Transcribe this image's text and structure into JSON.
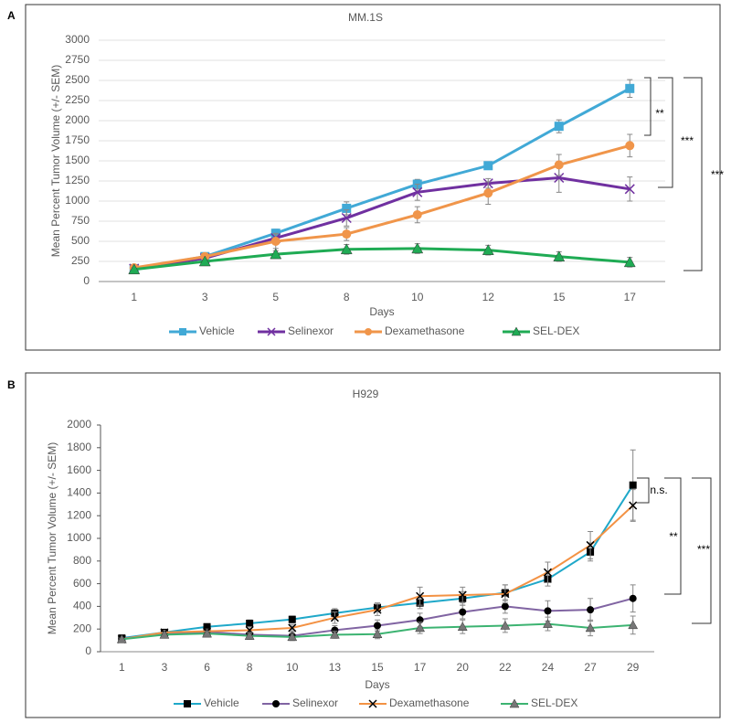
{
  "chart_data": [
    {
      "type": "line",
      "panel": "A",
      "title": "MM.1S",
      "x_label": "Days",
      "y_label": "Mean Percent Tumor Volume (+/- SEM)",
      "categories": [
        "1",
        "3",
        "5",
        "8",
        "10",
        "12",
        "15",
        "17"
      ],
      "ylim": [
        0,
        3000
      ],
      "yticks": [
        0,
        250,
        500,
        750,
        1000,
        1250,
        1500,
        1750,
        2000,
        2250,
        2500,
        2750,
        3000
      ],
      "grid": true,
      "series": [
        {
          "name": "Vehicle",
          "color": "#41a9d6",
          "marker": "square",
          "values": [
            160,
            310,
            600,
            910,
            1210,
            1440,
            1930,
            2400
          ],
          "errors": [
            20,
            30,
            50,
            80,
            60,
            40,
            80,
            110
          ]
        },
        {
          "name": "Selinexor",
          "color": "#7030a0",
          "marker": "x",
          "values": [
            160,
            290,
            540,
            790,
            1110,
            1220,
            1290,
            1150
          ],
          "errors": [
            20,
            30,
            60,
            100,
            100,
            60,
            180,
            150
          ]
        },
        {
          "name": "Dexamethasone",
          "color": "#f0954a",
          "marker": "circle",
          "values": [
            170,
            310,
            500,
            590,
            830,
            1100,
            1450,
            1690
          ],
          "errors": [
            20,
            30,
            90,
            80,
            100,
            140,
            130,
            140
          ]
        },
        {
          "name": "SEL-DEX",
          "color": "#1fab54",
          "marker": "triangle",
          "values": [
            150,
            250,
            340,
            400,
            410,
            390,
            310,
            240
          ],
          "errors": [
            20,
            20,
            40,
            60,
            60,
            60,
            60,
            60
          ]
        }
      ],
      "annotations": [
        {
          "text": "**"
        },
        {
          "text": "***"
        },
        {
          "text": "***"
        }
      ]
    },
    {
      "type": "line",
      "panel": "B",
      "title": "H929",
      "x_label": "Days",
      "y_label": "Mean Percent Tumor Volume (+/- SEM)",
      "categories": [
        "1",
        "3",
        "6",
        "8",
        "10",
        "13",
        "15",
        "17",
        "20",
        "22",
        "24",
        "27",
        "29"
      ],
      "ylim": [
        0,
        2000
      ],
      "yticks": [
        0,
        200,
        400,
        600,
        800,
        1000,
        1200,
        1400,
        1600,
        1800,
        2000
      ],
      "grid": false,
      "series": [
        {
          "name": "Vehicle",
          "color": "#1fa8c9",
          "marker": "square",
          "marker_color": "#000000",
          "values": [
            120,
            170,
            220,
            250,
            285,
            340,
            390,
            430,
            470,
            520,
            640,
            880,
            1470
          ],
          "errors": [
            10,
            20,
            20,
            30,
            30,
            40,
            40,
            50,
            60,
            70,
            60,
            80,
            310
          ]
        },
        {
          "name": "Selinexor",
          "color": "#8064a2",
          "marker": "circle",
          "marker_color": "#000000",
          "values": [
            115,
            160,
            175,
            150,
            140,
            190,
            230,
            280,
            350,
            400,
            360,
            370,
            470
          ],
          "errors": [
            10,
            20,
            20,
            40,
            40,
            40,
            50,
            60,
            60,
            60,
            90,
            100,
            120
          ]
        },
        {
          "name": "Dexamethasone",
          "color": "#f39244",
          "marker": "x",
          "marker_color": "#000000",
          "values": [
            110,
            170,
            180,
            190,
            210,
            300,
            370,
            490,
            500,
            510,
            700,
            940,
            1290
          ],
          "errors": [
            10,
            20,
            20,
            30,
            30,
            50,
            50,
            80,
            70,
            80,
            90,
            120,
            140
          ]
        },
        {
          "name": "SEL-DEX",
          "color": "#3cb371",
          "marker": "triangle",
          "marker_color": "#777777",
          "values": [
            110,
            150,
            160,
            140,
            130,
            150,
            155,
            210,
            220,
            230,
            245,
            210,
            235
          ],
          "errors": [
            10,
            20,
            20,
            30,
            30,
            30,
            40,
            50,
            60,
            60,
            60,
            70,
            80
          ]
        }
      ],
      "annotations": [
        {
          "text": "n.s."
        },
        {
          "text": "**"
        },
        {
          "text": "***"
        }
      ]
    }
  ]
}
